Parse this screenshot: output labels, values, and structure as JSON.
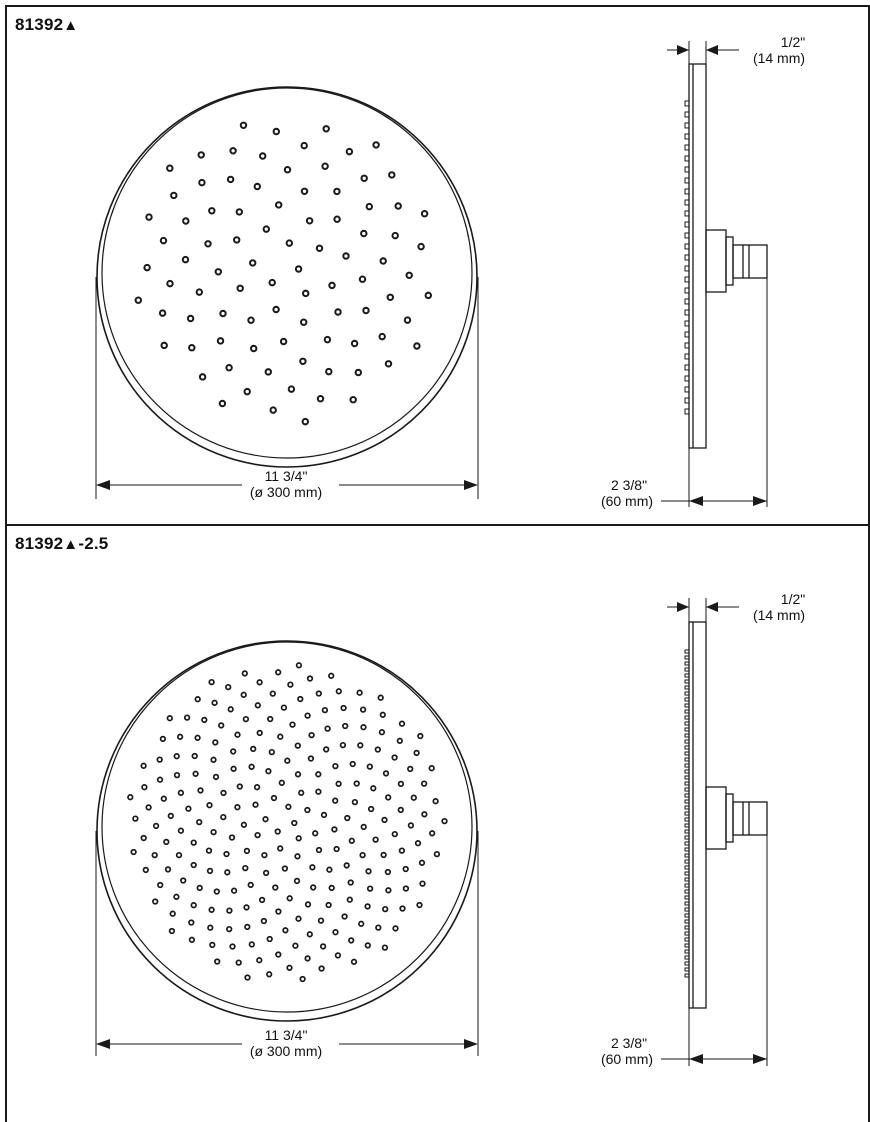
{
  "panels": [
    {
      "model_number": "81392",
      "model_symbol": "▲",
      "model_suffix": "",
      "diameter_imperial": "11 3/4\"",
      "diameter_metric": "(ø 300 mm)",
      "thickness_imperial": "1/2\"",
      "thickness_metric": "(14 mm)",
      "depth_imperial": "2 3/8\"",
      "depth_metric": "(60 mm)",
      "nozzle_pattern": "sparse",
      "nozzle_count": 89
    },
    {
      "model_number": "81392",
      "model_symbol": "▲",
      "model_suffix": "-2.5",
      "diameter_imperial": "11 3/4\"",
      "diameter_metric": "(ø 300 mm)",
      "thickness_imperial": "1/2\"",
      "thickness_metric": "(14 mm)",
      "depth_imperial": "2 3/8\"",
      "depth_metric": "(60 mm)",
      "nozzle_pattern": "dense",
      "nozzle_count": 241
    }
  ],
  "colors": {
    "line": "#1a1a1a",
    "background": "#ffffff"
  }
}
